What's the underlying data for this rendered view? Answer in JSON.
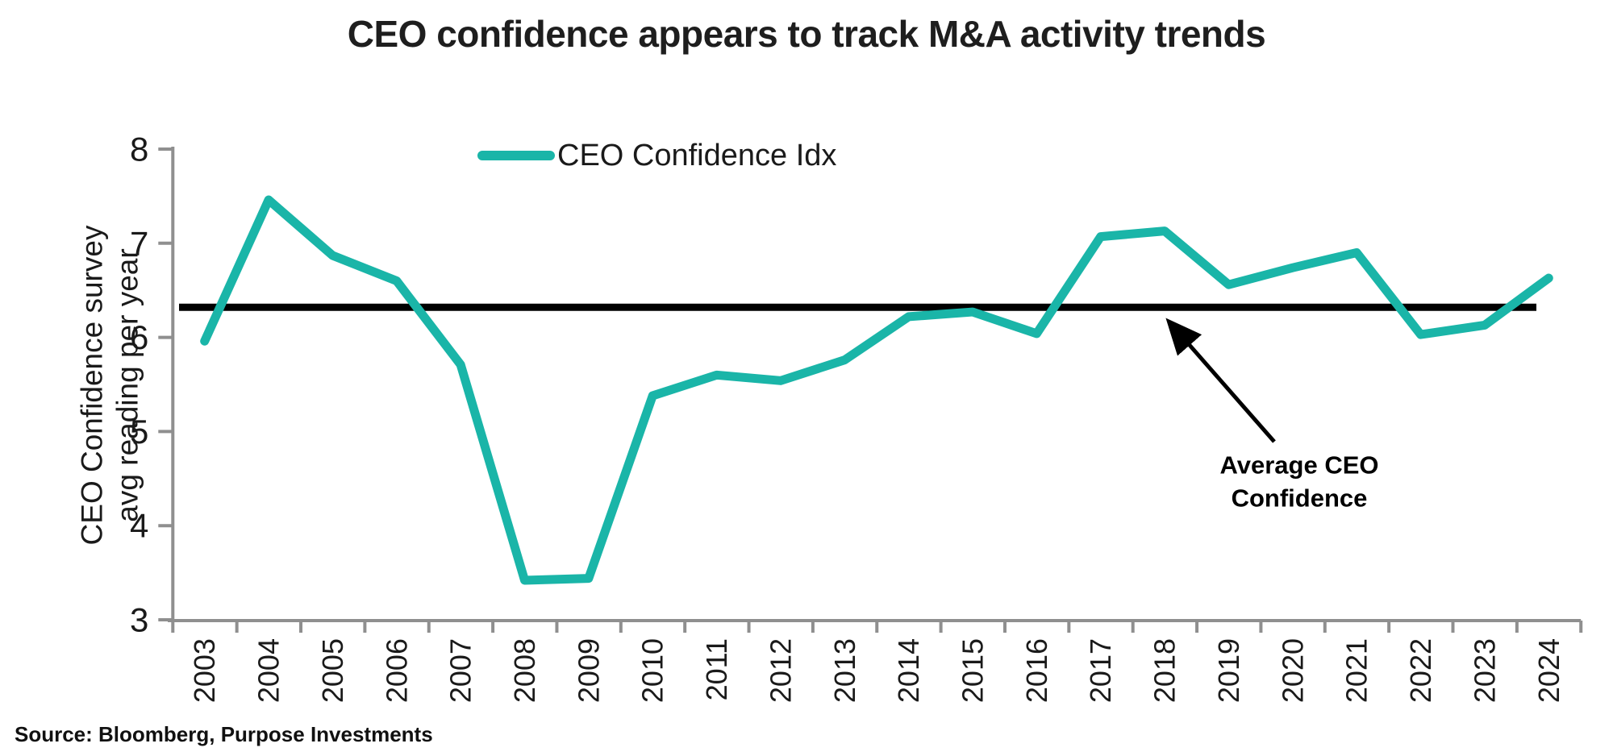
{
  "page": {
    "title": "CEO confidence appears to track M&A activity trends",
    "source": "Source: Bloomberg, Purpose Investments"
  },
  "chart_data": {
    "type": "line",
    "title": "CEO confidence appears to track M&A activity trends",
    "ylabel_line1": "CEO Confidence survey",
    "ylabel_line2": "avg reading per year",
    "xlabel": "",
    "legend_position": "top-center",
    "grid": false,
    "ylim": [
      3,
      8
    ],
    "y_ticks": [
      8,
      7,
      6,
      5,
      4,
      3
    ],
    "categories": [
      "2003",
      "2004",
      "2005",
      "2006",
      "2007",
      "2008",
      "2009",
      "2010",
      "2011",
      "2012",
      "2013",
      "2014",
      "2015",
      "2016",
      "2017",
      "2018",
      "2019",
      "2020",
      "2021",
      "2022",
      "2023",
      "2024"
    ],
    "series": [
      {
        "name": "CEO Confidence Idx",
        "values": [
          5.96,
          7.46,
          6.87,
          6.6,
          5.71,
          3.42,
          3.44,
          5.38,
          5.6,
          5.54,
          5.76,
          6.22,
          6.27,
          6.04,
          7.07,
          7.13,
          6.56,
          6.74,
          6.9,
          6.03,
          6.13,
          6.63
        ]
      }
    ],
    "average_line": {
      "value": 6.32,
      "label_line1": "Average CEO",
      "label_line2": "Confidence",
      "color": "#000000"
    },
    "colors": {
      "line": "#1ab5a8",
      "axis": "#8f8f8f",
      "text": "#1a1a1a",
      "annotation": "#000000"
    }
  }
}
